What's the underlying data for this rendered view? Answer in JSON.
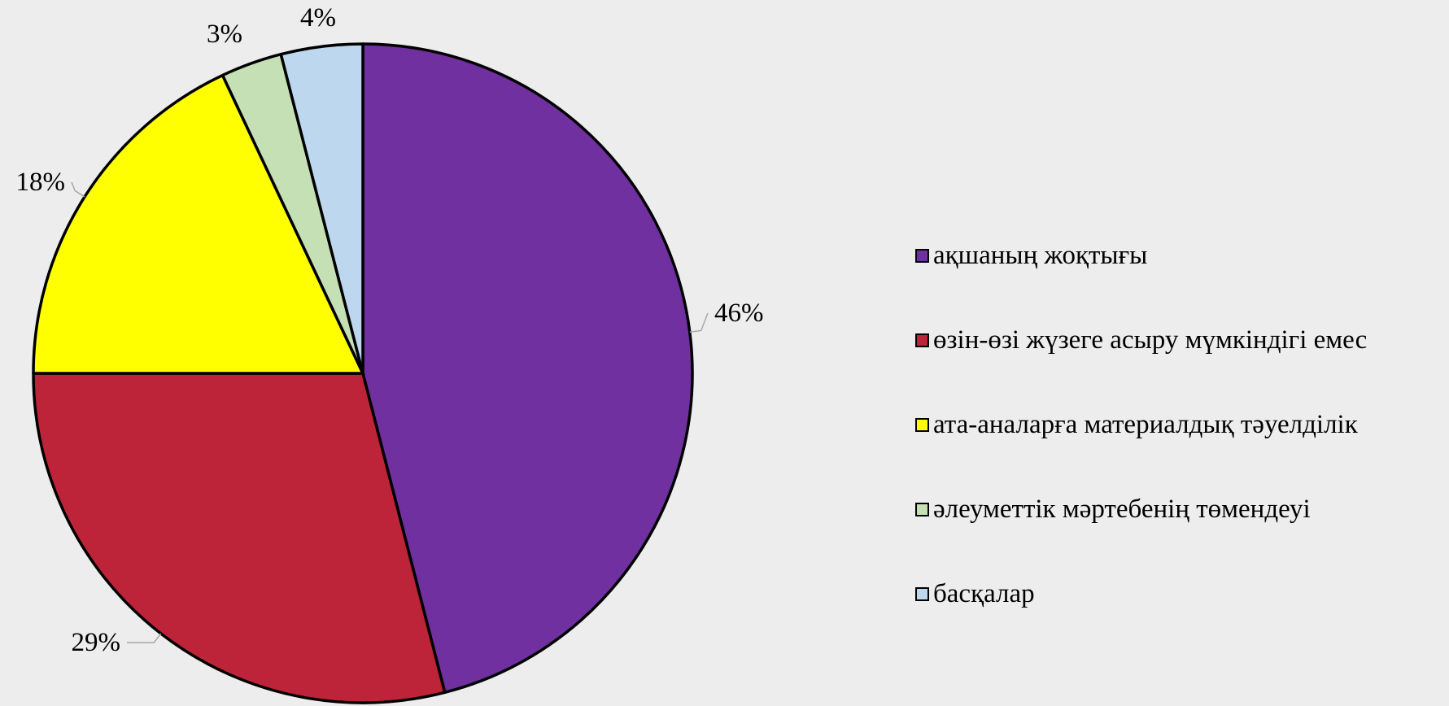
{
  "chart_data": {
    "type": "pie",
    "title": "",
    "slices": [
      {
        "label": "ақшаның жоқтығы",
        "value": 46,
        "display": "46%",
        "color": "#7030a0"
      },
      {
        "label": "өзін-өзі жүзеге асыру мүмкіндігі емес",
        "value": 29,
        "display": "29%",
        "color": "#be2439"
      },
      {
        "label": "ата-аналарға материалдық тәуелділік",
        "value": 18,
        "display": "18%",
        "color": "#ffff00"
      },
      {
        "label": "әлеуметтік мәртебенің төмендеуі",
        "value": 3,
        "display": "3%",
        "color": "#c5e0b4"
      },
      {
        "label": "басқалар",
        "value": 4,
        "display": "4%",
        "color": "#bdd7ee"
      }
    ],
    "legend_position": "right",
    "start_angle": "12 o'clock",
    "direction": "clockwise"
  }
}
